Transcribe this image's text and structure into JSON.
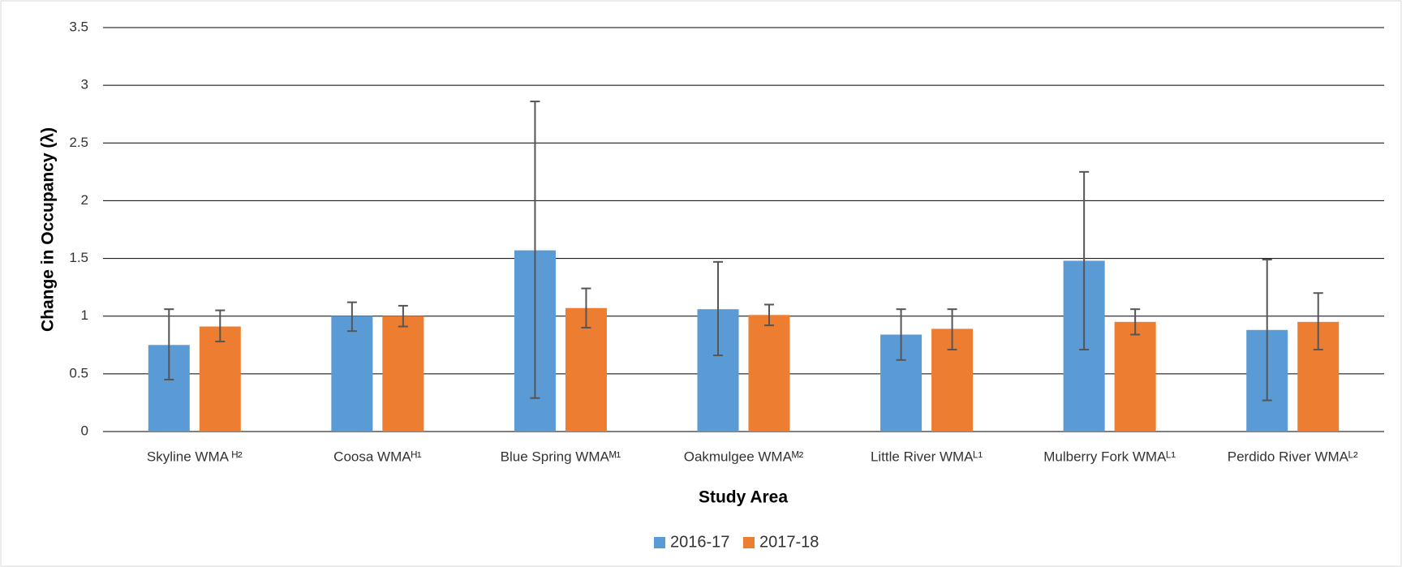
{
  "chart_data": {
    "type": "bar",
    "x_label": "Study Area",
    "y_label": "Change in Occupancy (λ)",
    "categories": [
      "Skyline WMA ᴴ²",
      "Coosa WMAᴴ¹",
      "Blue Spring WMAᴹ¹",
      "Oakmulgee WMAᴹ²",
      "Little River WMAᴸ¹",
      "Mulberry Fork WMAᴸ¹",
      "Perdido River WMAᴸ²"
    ],
    "series": [
      {
        "name": "2016-17",
        "color": "#5b9bd5",
        "values": [
          0.75,
          1.0,
          1.57,
          1.06,
          0.84,
          1.48,
          0.88
        ],
        "ci_lower": [
          0.45,
          0.87,
          0.29,
          0.66,
          0.62,
          0.71,
          0.27
        ],
        "ci_upper": [
          1.06,
          1.12,
          2.86,
          1.47,
          1.06,
          2.25,
          1.49
        ]
      },
      {
        "name": "2017-18",
        "color": "#ed7d31",
        "values": [
          0.91,
          1.0,
          1.07,
          1.01,
          0.89,
          0.95,
          0.95
        ],
        "ci_lower": [
          0.78,
          0.91,
          0.9,
          0.92,
          0.71,
          0.84,
          0.71
        ],
        "ci_upper": [
          1.05,
          1.09,
          1.24,
          1.1,
          1.06,
          1.06,
          1.2
        ]
      }
    ],
    "ylim": [
      0,
      3.5
    ],
    "yticks": [
      0,
      0.5,
      1,
      1.5,
      2,
      2.5,
      3,
      3.5
    ],
    "grid": true,
    "legend": "bottom"
  }
}
